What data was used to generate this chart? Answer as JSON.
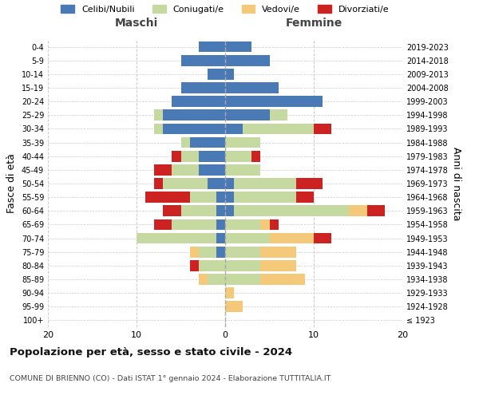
{
  "age_groups": [
    "100+",
    "95-99",
    "90-94",
    "85-89",
    "80-84",
    "75-79",
    "70-74",
    "65-69",
    "60-64",
    "55-59",
    "50-54",
    "45-49",
    "40-44",
    "35-39",
    "30-34",
    "25-29",
    "20-24",
    "15-19",
    "10-14",
    "5-9",
    "0-4"
  ],
  "birth_years": [
    "≤ 1923",
    "1924-1928",
    "1929-1933",
    "1934-1938",
    "1939-1943",
    "1944-1948",
    "1949-1953",
    "1954-1958",
    "1959-1963",
    "1964-1968",
    "1969-1973",
    "1974-1978",
    "1979-1983",
    "1984-1988",
    "1989-1993",
    "1994-1998",
    "1999-2003",
    "2004-2008",
    "2009-2013",
    "2014-2018",
    "2019-2023"
  ],
  "maschi": {
    "celibi": [
      0,
      0,
      0,
      0,
      0,
      1,
      1,
      1,
      1,
      1,
      2,
      3,
      3,
      4,
      7,
      7,
      6,
      5,
      2,
      5,
      3
    ],
    "coniugati": [
      0,
      0,
      0,
      2,
      3,
      2,
      9,
      5,
      4,
      3,
      5,
      3,
      2,
      1,
      1,
      1,
      0,
      0,
      0,
      0,
      0
    ],
    "vedovi": [
      0,
      0,
      0,
      1,
      0,
      1,
      0,
      0,
      0,
      0,
      0,
      0,
      0,
      0,
      0,
      0,
      0,
      0,
      0,
      0,
      0
    ],
    "divorziati": [
      0,
      0,
      0,
      0,
      1,
      0,
      0,
      2,
      2,
      5,
      1,
      2,
      1,
      0,
      0,
      0,
      0,
      0,
      0,
      0,
      0
    ]
  },
  "femmine": {
    "nubili": [
      0,
      0,
      0,
      0,
      0,
      0,
      0,
      0,
      1,
      1,
      1,
      0,
      0,
      0,
      2,
      5,
      11,
      6,
      1,
      5,
      3
    ],
    "coniugate": [
      0,
      0,
      0,
      4,
      4,
      4,
      5,
      4,
      13,
      7,
      7,
      4,
      3,
      4,
      8,
      2,
      0,
      0,
      0,
      0,
      0
    ],
    "vedove": [
      0,
      2,
      1,
      5,
      4,
      4,
      5,
      1,
      2,
      0,
      0,
      0,
      0,
      0,
      0,
      0,
      0,
      0,
      0,
      0,
      0
    ],
    "divorziate": [
      0,
      0,
      0,
      0,
      0,
      0,
      2,
      1,
      2,
      2,
      3,
      0,
      1,
      0,
      2,
      0,
      0,
      0,
      0,
      0,
      0
    ]
  },
  "colors": {
    "celibi_nubili": "#4a7ab5",
    "coniugati": "#c5d9a0",
    "vedovi": "#f5c97a",
    "divorziati": "#cc2222"
  },
  "xlim": 20,
  "title": "Popolazione per età, sesso e stato civile - 2024",
  "subtitle": "COMUNE DI BRIENNO (CO) - Dati ISTAT 1° gennaio 2024 - Elaborazione TUTTITALIA.IT",
  "ylabel_left": "Fasce di età",
  "ylabel_right": "Anni di nascita",
  "xlabel_left": "Maschi",
  "xlabel_right": "Femmine",
  "bg_color": "#ffffff",
  "grid_color": "#cccccc"
}
